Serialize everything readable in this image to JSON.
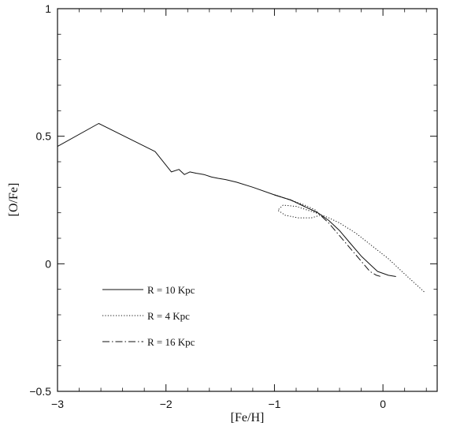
{
  "chart_data": {
    "type": "line",
    "title": "",
    "xlabel": "[Fe/H]",
    "ylabel": "[O/Fe]",
    "xlim": [
      -3,
      0.5
    ],
    "ylim": [
      -0.5,
      1
    ],
    "xticks": [
      -3,
      -2,
      -1,
      0
    ],
    "xtick_labels": [
      "−3",
      "−2",
      "−1",
      "0"
    ],
    "yticks": [
      -0.5,
      0,
      0.5,
      1
    ],
    "ytick_labels": [
      "−0.5",
      "0",
      "0.5",
      "1"
    ],
    "grid": false,
    "legend_position": "lower-left",
    "series": [
      {
        "name": "R = 10 Kpc",
        "style": "solid",
        "x": [
          -3.0,
          -2.62,
          -2.1,
          -1.95,
          -1.88,
          -1.83,
          -1.78,
          -1.72,
          -1.65,
          -1.58,
          -1.52,
          -1.45,
          -1.35,
          -1.2,
          -1.0,
          -0.85,
          -0.7,
          -0.6,
          -0.5,
          -0.4,
          -0.3,
          -0.2,
          -0.1,
          -0.05,
          0.05,
          0.12
        ],
        "y": [
          0.46,
          0.55,
          0.44,
          0.36,
          0.37,
          0.35,
          0.36,
          0.355,
          0.35,
          0.34,
          0.335,
          0.33,
          0.32,
          0.3,
          0.27,
          0.25,
          0.22,
          0.2,
          0.17,
          0.13,
          0.08,
          0.03,
          -0.01,
          -0.03,
          -0.045,
          -0.05
        ]
      },
      {
        "name": "R = 4 Kpc",
        "style": "dotted",
        "x": [
          -1.0,
          -0.85,
          -0.72,
          -0.62,
          -0.58,
          -0.66,
          -0.78,
          -0.9,
          -0.97,
          -0.92,
          -0.8,
          -0.62,
          -0.5,
          -0.4,
          -0.25,
          -0.1,
          0.05,
          0.2,
          0.38
        ],
        "y": [
          0.27,
          0.25,
          0.23,
          0.21,
          0.19,
          0.18,
          0.18,
          0.19,
          0.21,
          0.23,
          0.225,
          0.2,
          0.18,
          0.16,
          0.12,
          0.07,
          0.02,
          -0.04,
          -0.11
        ]
      },
      {
        "name": "R = 16 Kpc",
        "style": "dashdot",
        "x": [
          -1.0,
          -0.85,
          -0.7,
          -0.6,
          -0.5,
          -0.4,
          -0.3,
          -0.2,
          -0.12,
          -0.06,
          -0.02
        ],
        "y": [
          0.27,
          0.25,
          0.22,
          0.2,
          0.16,
          0.11,
          0.06,
          0.01,
          -0.03,
          -0.045,
          -0.05
        ]
      }
    ],
    "legend": [
      {
        "label": "R = 10 Kpc",
        "style": "solid"
      },
      {
        "label": "R = 4 Kpc",
        "style": "dotted"
      },
      {
        "label": "R = 16 Kpc",
        "style": "dashdot"
      }
    ]
  }
}
